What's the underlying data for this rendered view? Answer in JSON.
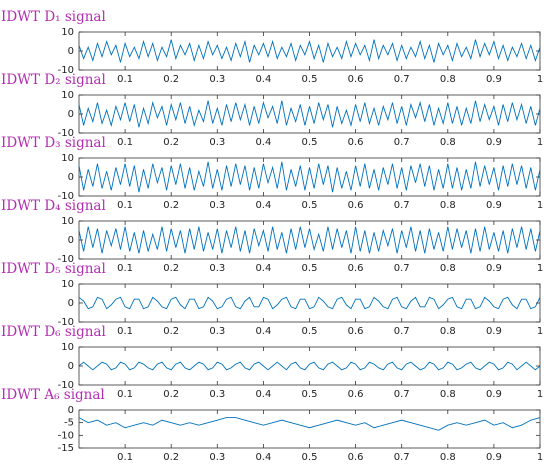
{
  "chart_data": [
    {
      "type": "line",
      "title": "IDWT D₁ signal",
      "color": "#0072bd",
      "xlim": [
        0,
        1
      ],
      "ylim": [
        -10,
        10
      ],
      "xticks": [
        0.1,
        0.2,
        0.3,
        0.4,
        0.5,
        0.6,
        0.7,
        0.8,
        0.9,
        1
      ],
      "yticks": [
        -10,
        0,
        10
      ],
      "x": [
        0,
        0.01,
        0.02,
        0.03,
        0.04,
        0.05,
        0.06,
        0.07,
        0.08,
        0.09,
        0.1,
        0.11,
        0.12,
        0.13,
        0.14,
        0.15,
        0.16,
        0.17,
        0.18,
        0.19,
        0.2,
        0.21,
        0.22,
        0.23,
        0.24,
        0.25,
        0.26,
        0.27,
        0.28,
        0.29,
        0.3,
        0.31,
        0.32,
        0.33,
        0.34,
        0.35,
        0.36,
        0.37,
        0.38,
        0.39,
        0.4,
        0.41,
        0.42,
        0.43,
        0.44,
        0.45,
        0.46,
        0.47,
        0.48,
        0.49,
        0.5,
        0.51,
        0.52,
        0.53,
        0.54,
        0.55,
        0.56,
        0.57,
        0.58,
        0.59,
        0.6,
        0.61,
        0.62,
        0.63,
        0.64,
        0.65,
        0.66,
        0.67,
        0.68,
        0.69,
        0.7,
        0.71,
        0.72,
        0.73,
        0.74,
        0.75,
        0.76,
        0.77,
        0.78,
        0.79,
        0.8,
        0.81,
        0.82,
        0.83,
        0.84,
        0.85,
        0.86,
        0.87,
        0.88,
        0.89,
        0.9,
        0.91,
        0.92,
        0.93,
        0.94,
        0.95,
        0.96,
        0.97,
        0.98,
        0.99,
        1
      ],
      "values": [
        3,
        -4,
        2,
        -5,
        4,
        -3,
        5,
        -2,
        3,
        -6,
        4,
        -3,
        2,
        -4,
        5,
        -3,
        4,
        -5,
        2,
        -3,
        6,
        -4,
        3,
        -2,
        4,
        -5,
        3,
        -4,
        5,
        -2,
        3,
        -4,
        2,
        -5,
        4,
        -3,
        5,
        -6,
        3,
        -2,
        4,
        -3,
        5,
        -4,
        2,
        -3,
        4,
        -5,
        3,
        -2,
        5,
        -4,
        3,
        -6,
        4,
        -3,
        2,
        -4,
        5,
        -3,
        4,
        -2,
        3,
        -5,
        6,
        -4,
        3,
        -2,
        4,
        -5,
        3,
        -4,
        2,
        -3,
        5,
        -4,
        3,
        -6,
        4,
        -2,
        3,
        -5,
        4,
        -3,
        2,
        -4,
        6,
        -3,
        4,
        -2,
        5,
        -4,
        3,
        -5,
        2,
        -3,
        4,
        -4,
        3,
        -5,
        2
      ]
    },
    {
      "type": "line",
      "title": "IDWT D₂ signal",
      "color": "#0072bd",
      "xlim": [
        0,
        1
      ],
      "ylim": [
        -10,
        10
      ],
      "xticks": [
        0.1,
        0.2,
        0.3,
        0.4,
        0.5,
        0.6,
        0.7,
        0.8,
        0.9,
        1
      ],
      "yticks": [
        -10,
        0,
        10
      ],
      "x": [
        0,
        0.01,
        0.02,
        0.03,
        0.04,
        0.05,
        0.06,
        0.07,
        0.08,
        0.09,
        0.1,
        0.11,
        0.12,
        0.13,
        0.14,
        0.15,
        0.16,
        0.17,
        0.18,
        0.19,
        0.2,
        0.21,
        0.22,
        0.23,
        0.24,
        0.25,
        0.26,
        0.27,
        0.28,
        0.29,
        0.3,
        0.31,
        0.32,
        0.33,
        0.34,
        0.35,
        0.36,
        0.37,
        0.38,
        0.39,
        0.4,
        0.41,
        0.42,
        0.43,
        0.44,
        0.45,
        0.46,
        0.47,
        0.48,
        0.49,
        0.5,
        0.51,
        0.52,
        0.53,
        0.54,
        0.55,
        0.56,
        0.57,
        0.58,
        0.59,
        0.6,
        0.61,
        0.62,
        0.63,
        0.64,
        0.65,
        0.66,
        0.67,
        0.68,
        0.69,
        0.7,
        0.71,
        0.72,
        0.73,
        0.74,
        0.75,
        0.76,
        0.77,
        0.78,
        0.79,
        0.8,
        0.81,
        0.82,
        0.83,
        0.84,
        0.85,
        0.86,
        0.87,
        0.88,
        0.89,
        0.9,
        0.91,
        0.92,
        0.93,
        0.94,
        0.95,
        0.96,
        0.97,
        0.98,
        0.99,
        1
      ],
      "values": [
        5,
        -6,
        3,
        -4,
        6,
        -5,
        2,
        -6,
        4,
        -3,
        6,
        -4,
        5,
        -7,
        3,
        -5,
        6,
        -2,
        4,
        -6,
        5,
        -3,
        6,
        -5,
        4,
        -6,
        2,
        -4,
        7,
        -5,
        3,
        -6,
        5,
        -4,
        6,
        -3,
        5,
        -6,
        4,
        -5,
        6,
        -2,
        4,
        -5,
        7,
        -6,
        3,
        -4,
        5,
        -6,
        4,
        -5,
        6,
        -3,
        5,
        -7,
        4,
        -5,
        2,
        -6,
        5,
        -4,
        6,
        -5,
        3,
        -6,
        4,
        -3,
        6,
        -5,
        4,
        -6,
        5,
        -2,
        6,
        -4,
        5,
        -6,
        3,
        -5,
        6,
        -5,
        4,
        -6,
        3,
        -5,
        7,
        -4,
        5,
        -3,
        4,
        -6,
        5,
        -4,
        6,
        -3,
        5,
        -5,
        4,
        -6,
        3
      ]
    },
    {
      "type": "line",
      "title": "IDWT D₃ signal",
      "color": "#0072bd",
      "xlim": [
        0,
        1
      ],
      "ylim": [
        -10,
        10
      ],
      "xticks": [
        0.1,
        0.2,
        0.3,
        0.4,
        0.5,
        0.6,
        0.7,
        0.8,
        0.9,
        1
      ],
      "yticks": [
        -10,
        0,
        10
      ],
      "x": [
        0,
        0.01,
        0.02,
        0.03,
        0.04,
        0.05,
        0.06,
        0.07,
        0.08,
        0.09,
        0.1,
        0.11,
        0.12,
        0.13,
        0.14,
        0.15,
        0.16,
        0.17,
        0.18,
        0.19,
        0.2,
        0.21,
        0.22,
        0.23,
        0.24,
        0.25,
        0.26,
        0.27,
        0.28,
        0.29,
        0.3,
        0.31,
        0.32,
        0.33,
        0.34,
        0.35,
        0.36,
        0.37,
        0.38,
        0.39,
        0.4,
        0.41,
        0.42,
        0.43,
        0.44,
        0.45,
        0.46,
        0.47,
        0.48,
        0.49,
        0.5,
        0.51,
        0.52,
        0.53,
        0.54,
        0.55,
        0.56,
        0.57,
        0.58,
        0.59,
        0.6,
        0.61,
        0.62,
        0.63,
        0.64,
        0.65,
        0.66,
        0.67,
        0.68,
        0.69,
        0.7,
        0.71,
        0.72,
        0.73,
        0.74,
        0.75,
        0.76,
        0.77,
        0.78,
        0.79,
        0.8,
        0.81,
        0.82,
        0.83,
        0.84,
        0.85,
        0.86,
        0.87,
        0.88,
        0.89,
        0.9,
        0.91,
        0.92,
        0.93,
        0.94,
        0.95,
        0.96,
        0.97,
        0.98,
        0.99,
        1
      ],
      "values": [
        6,
        -7,
        4,
        -5,
        7,
        -6,
        3,
        -7,
        5,
        -4,
        7,
        -5,
        6,
        -8,
        4,
        -6,
        7,
        -3,
        5,
        -7,
        6,
        -4,
        7,
        -6,
        5,
        -7,
        3,
        -5,
        8,
        -6,
        4,
        -7,
        6,
        -5,
        7,
        -4,
        6,
        -7,
        5,
        -6,
        7,
        -3,
        5,
        -6,
        8,
        -7,
        4,
        -5,
        6,
        -7,
        5,
        -6,
        7,
        -4,
        6,
        -8,
        5,
        -6,
        3,
        -7,
        6,
        -5,
        7,
        -6,
        4,
        -7,
        5,
        -4,
        7,
        -6,
        5,
        -7,
        6,
        -3,
        7,
        -5,
        6,
        -7,
        4,
        -6,
        7,
        -6,
        5,
        -7,
        4,
        -6,
        8,
        -5,
        6,
        -4,
        5,
        -7,
        6,
        -5,
        7,
        -4,
        6,
        -6,
        5,
        -7,
        4
      ]
    },
    {
      "type": "line",
      "title": "IDWT D₄ signal",
      "color": "#0072bd",
      "xlim": [
        0,
        1
      ],
      "ylim": [
        -10,
        10
      ],
      "xticks": [
        0.1,
        0.2,
        0.3,
        0.4,
        0.5,
        0.6,
        0.7,
        0.8,
        0.9,
        1
      ],
      "yticks": [
        -10,
        0,
        10
      ],
      "x": [
        0,
        0.01,
        0.02,
        0.03,
        0.04,
        0.05,
        0.06,
        0.07,
        0.08,
        0.09,
        0.1,
        0.11,
        0.12,
        0.13,
        0.14,
        0.15,
        0.16,
        0.17,
        0.18,
        0.19,
        0.2,
        0.21,
        0.22,
        0.23,
        0.24,
        0.25,
        0.26,
        0.27,
        0.28,
        0.29,
        0.3,
        0.31,
        0.32,
        0.33,
        0.34,
        0.35,
        0.36,
        0.37,
        0.38,
        0.39,
        0.4,
        0.41,
        0.42,
        0.43,
        0.44,
        0.45,
        0.46,
        0.47,
        0.48,
        0.49,
        0.5,
        0.51,
        0.52,
        0.53,
        0.54,
        0.55,
        0.56,
        0.57,
        0.58,
        0.59,
        0.6,
        0.61,
        0.62,
        0.63,
        0.64,
        0.65,
        0.66,
        0.67,
        0.68,
        0.69,
        0.7,
        0.71,
        0.72,
        0.73,
        0.74,
        0.75,
        0.76,
        0.77,
        0.78,
        0.79,
        0.8,
        0.81,
        0.82,
        0.83,
        0.84,
        0.85,
        0.86,
        0.87,
        0.88,
        0.89,
        0.9,
        0.91,
        0.92,
        0.93,
        0.94,
        0.95,
        0.96,
        0.97,
        0.98,
        0.99,
        1
      ],
      "values": [
        5,
        -6,
        7,
        -4,
        6,
        -7,
        5,
        -3,
        6,
        -5,
        7,
        -6,
        4,
        -7,
        5,
        -6,
        3,
        -5,
        7,
        -6,
        6,
        -4,
        5,
        -7,
        6,
        -5,
        7,
        -6,
        4,
        -5,
        6,
        -7,
        5,
        -4,
        7,
        -6,
        5,
        -7,
        6,
        -3,
        5,
        -6,
        7,
        -5,
        4,
        -7,
        6,
        -5,
        7,
        -4,
        6,
        -5,
        3,
        -6,
        7,
        -5,
        6,
        -4,
        5,
        -7,
        7,
        -6,
        5,
        -7,
        4,
        -6,
        5,
        -3,
        6,
        -7,
        5,
        -4,
        7,
        -6,
        5,
        -7,
        6,
        -5,
        4,
        -6,
        7,
        -5,
        6,
        -4,
        5,
        -7,
        6,
        -6,
        7,
        -5,
        4,
        -6,
        5,
        -7,
        6,
        -4,
        7,
        -5,
        6,
        -6,
        5
      ]
    },
    {
      "type": "line",
      "title": "IDWT D₅ signal",
      "color": "#0072bd",
      "xlim": [
        0,
        1
      ],
      "ylim": [
        -10,
        10
      ],
      "xticks": [
        0.1,
        0.2,
        0.3,
        0.4,
        0.5,
        0.6,
        0.7,
        0.8,
        0.9,
        1
      ],
      "yticks": [
        -10,
        0,
        10
      ],
      "x": [
        0,
        0.01,
        0.02,
        0.03,
        0.04,
        0.05,
        0.06,
        0.07,
        0.08,
        0.09,
        0.1,
        0.11,
        0.12,
        0.13,
        0.14,
        0.15,
        0.16,
        0.17,
        0.18,
        0.19,
        0.2,
        0.21,
        0.22,
        0.23,
        0.24,
        0.25,
        0.26,
        0.27,
        0.28,
        0.29,
        0.3,
        0.31,
        0.32,
        0.33,
        0.34,
        0.35,
        0.36,
        0.37,
        0.38,
        0.39,
        0.4,
        0.41,
        0.42,
        0.43,
        0.44,
        0.45,
        0.46,
        0.47,
        0.48,
        0.49,
        0.5,
        0.51,
        0.52,
        0.53,
        0.54,
        0.55,
        0.56,
        0.57,
        0.58,
        0.59,
        0.6,
        0.61,
        0.62,
        0.63,
        0.64,
        0.65,
        0.66,
        0.67,
        0.68,
        0.69,
        0.7,
        0.71,
        0.72,
        0.73,
        0.74,
        0.75,
        0.76,
        0.77,
        0.78,
        0.79,
        0.8,
        0.81,
        0.82,
        0.83,
        0.84,
        0.85,
        0.86,
        0.87,
        0.88,
        0.89,
        0.9,
        0.91,
        0.92,
        0.93,
        0.94,
        0.95,
        0.96,
        0.97,
        0.98,
        0.99,
        1
      ],
      "values": [
        3,
        1,
        -3,
        -2,
        3,
        2,
        -3,
        -1,
        2,
        3,
        -2,
        -3,
        2,
        2,
        -3,
        -2,
        3,
        1,
        -2,
        -3,
        2,
        3,
        -1,
        -3,
        2,
        2,
        -3,
        -2,
        3,
        1,
        -3,
        -2,
        2,
        3,
        -2,
        -3,
        1,
        3,
        -2,
        -2,
        3,
        2,
        -3,
        -1,
        2,
        3,
        -2,
        -3,
        2,
        2,
        -3,
        -2,
        3,
        1,
        -2,
        -3,
        2,
        3,
        -1,
        -3,
        2,
        2,
        -3,
        -2,
        3,
        1,
        -2,
        -3,
        2,
        3,
        -2,
        -3,
        1,
        3,
        -2,
        -2,
        3,
        2,
        -3,
        -1,
        2,
        3,
        -2,
        -3,
        2,
        2,
        -3,
        -2,
        3,
        1,
        -2,
        -3,
        2,
        3,
        -1,
        -3,
        2,
        2,
        -3,
        -2,
        3
      ]
    },
    {
      "type": "line",
      "title": "IDWT D₆ signal",
      "color": "#0072bd",
      "xlim": [
        0,
        1
      ],
      "ylim": [
        -10,
        10
      ],
      "xticks": [
        0.1,
        0.2,
        0.3,
        0.4,
        0.5,
        0.6,
        0.7,
        0.8,
        0.9,
        1
      ],
      "yticks": [
        -10,
        0,
        10
      ],
      "x": [
        0,
        0.01,
        0.02,
        0.03,
        0.04,
        0.05,
        0.06,
        0.07,
        0.08,
        0.09,
        0.1,
        0.11,
        0.12,
        0.13,
        0.14,
        0.15,
        0.16,
        0.17,
        0.18,
        0.19,
        0.2,
        0.21,
        0.22,
        0.23,
        0.24,
        0.25,
        0.26,
        0.27,
        0.28,
        0.29,
        0.3,
        0.31,
        0.32,
        0.33,
        0.34,
        0.35,
        0.36,
        0.37,
        0.38,
        0.39,
        0.4,
        0.41,
        0.42,
        0.43,
        0.44,
        0.45,
        0.46,
        0.47,
        0.48,
        0.49,
        0.5,
        0.51,
        0.52,
        0.53,
        0.54,
        0.55,
        0.56,
        0.57,
        0.58,
        0.59,
        0.6,
        0.61,
        0.62,
        0.63,
        0.64,
        0.65,
        0.66,
        0.67,
        0.68,
        0.69,
        0.7,
        0.71,
        0.72,
        0.73,
        0.74,
        0.75,
        0.76,
        0.77,
        0.78,
        0.79,
        0.8,
        0.81,
        0.82,
        0.83,
        0.84,
        0.85,
        0.86,
        0.87,
        0.88,
        0.89,
        0.9,
        0.91,
        0.92,
        0.93,
        0.94,
        0.95,
        0.96,
        0.97,
        0.98,
        0.99,
        1
      ],
      "values": [
        0,
        2,
        0,
        -2,
        0,
        2,
        1,
        -2,
        -1,
        2,
        1,
        -2,
        -1,
        2,
        1,
        -1,
        -2,
        1,
        2,
        -1,
        -2,
        1,
        2,
        -1,
        -2,
        0,
        2,
        1,
        -2,
        -1,
        2,
        1,
        -2,
        -1,
        1,
        2,
        -1,
        -2,
        1,
        2,
        0,
        -2,
        0,
        2,
        0,
        -2,
        1,
        2,
        -1,
        -2,
        1,
        2,
        -1,
        -2,
        1,
        2,
        0,
        -2,
        -1,
        2,
        1,
        -2,
        -1,
        2,
        1,
        -1,
        -2,
        1,
        2,
        -1,
        -2,
        1,
        2,
        0,
        -2,
        -1,
        2,
        1,
        -2,
        -1,
        2,
        1,
        -2,
        -1,
        1,
        2,
        -1,
        -2,
        0,
        2,
        1,
        -2,
        -1,
        2,
        1,
        -2,
        0,
        2,
        0,
        -2,
        0
      ]
    },
    {
      "type": "line",
      "title": "IDWT A₆ signal",
      "color": "#0072bd",
      "xlim": [
        0,
        1
      ],
      "ylim": [
        -15,
        0
      ],
      "xticks": [
        0.1,
        0.2,
        0.3,
        0.4,
        0.5,
        0.6,
        0.7,
        0.8,
        0.9,
        1
      ],
      "yticks": [
        -15,
        -10,
        -5,
        0
      ],
      "x": [
        0,
        0.02,
        0.04,
        0.06,
        0.08,
        0.1,
        0.12,
        0.14,
        0.16,
        0.18,
        0.2,
        0.22,
        0.24,
        0.26,
        0.28,
        0.3,
        0.32,
        0.34,
        0.36,
        0.38,
        0.4,
        0.42,
        0.44,
        0.46,
        0.48,
        0.5,
        0.52,
        0.54,
        0.56,
        0.58,
        0.6,
        0.62,
        0.64,
        0.66,
        0.68,
        0.7,
        0.72,
        0.74,
        0.76,
        0.78,
        0.8,
        0.82,
        0.84,
        0.86,
        0.88,
        0.9,
        0.92,
        0.94,
        0.96,
        0.98,
        1
      ],
      "values": [
        -3,
        -5,
        -4,
        -6,
        -5,
        -7,
        -6,
        -5,
        -6,
        -4,
        -5,
        -6,
        -5,
        -6,
        -5,
        -4,
        -3,
        -3,
        -4,
        -5,
        -6,
        -5,
        -4,
        -5,
        -6,
        -7,
        -6,
        -5,
        -4,
        -5,
        -6,
        -5,
        -7,
        -6,
        -5,
        -4,
        -5,
        -6,
        -7,
        -8,
        -6,
        -5,
        -6,
        -5,
        -4,
        -6,
        -5,
        -7,
        -6,
        -4,
        -3
      ]
    }
  ]
}
